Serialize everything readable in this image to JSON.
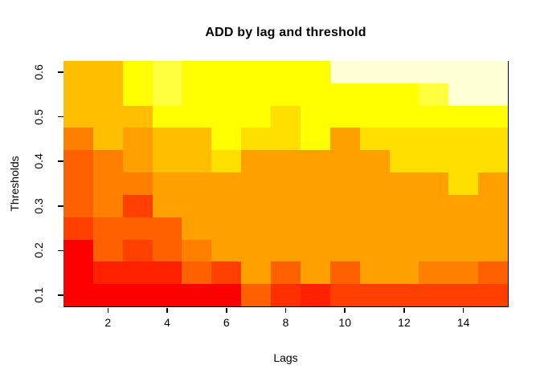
{
  "chart_data": {
    "type": "heatmap",
    "title": "ADD by lag and threshold",
    "xlabel": "Lags",
    "ylabel": "Thresholds",
    "x_ticks": [
      "2",
      "4",
      "6",
      "8",
      "10",
      "12",
      "14"
    ],
    "x_tick_lags": [
      2,
      4,
      6,
      8,
      10,
      12,
      14
    ],
    "y_ticks": [
      "0.1",
      "0.2",
      "0.3",
      "0.4",
      "0.5",
      "0.6"
    ],
    "y_tick_values": [
      0.1,
      0.2,
      0.3,
      0.4,
      0.5,
      0.6
    ],
    "lags": [
      1,
      2,
      3,
      4,
      5,
      6,
      7,
      8,
      9,
      10,
      11,
      12,
      13,
      14,
      15
    ],
    "thresholds_top_to_bottom": [
      0.6,
      0.55,
      0.5,
      0.45,
      0.4,
      0.35,
      0.3,
      0.25,
      0.2,
      0.15,
      0.1
    ],
    "x_range": [
      0.5,
      15.5
    ],
    "y_range": [
      0.075,
      0.625
    ],
    "grid_on": false,
    "legend": "none",
    "palette_heat_low_to_high": [
      "#FF0000",
      "#FF2000",
      "#FF3000",
      "#FF4000",
      "#FF6000",
      "#FF8000",
      "#FF9F00",
      "#FFBF00",
      "#FFDF00",
      "#FFFF00",
      "#FFFF40",
      "#FFFFD5"
    ],
    "grid_colors_top_to_bottom": [
      [
        "#FFBF00",
        "#FFBF00",
        "#FFFF00",
        "#FFFF40",
        "#FFFF00",
        "#FFFF00",
        "#FFFF00",
        "#FFFF00",
        "#FFFF00",
        "#FFFFD5",
        "#FFFFD5",
        "#FFFFD5",
        "#FFFFD5",
        "#FFFFD5",
        "#FFFFD5"
      ],
      [
        "#FFBF00",
        "#FFBF00",
        "#FFFF00",
        "#FFFF40",
        "#FFFF00",
        "#FFFF00",
        "#FFFF00",
        "#FFFF00",
        "#FFFF00",
        "#FFFF00",
        "#FFFF00",
        "#FFFF00",
        "#FFFF40",
        "#FFFFD5",
        "#FFFFD5"
      ],
      [
        "#FFBF00",
        "#FFBF00",
        "#FFBF00",
        "#FFFF00",
        "#FFFF00",
        "#FFFF00",
        "#FFFF00",
        "#FFDF00",
        "#FFFF00",
        "#FFFF00",
        "#FFFF00",
        "#FFFF00",
        "#FFFF00",
        "#FFFF00",
        "#FFFF00"
      ],
      [
        "#FF8000",
        "#FFBF00",
        "#FF9F00",
        "#FFBF00",
        "#FFBF00",
        "#FFFF00",
        "#FFDF00",
        "#FFDF00",
        "#FFFF00",
        "#FF9F00",
        "#FFDF00",
        "#FFDF00",
        "#FFDF00",
        "#FFDF00",
        "#FFDF00"
      ],
      [
        "#FF6000",
        "#FF8000",
        "#FF9F00",
        "#FFBF00",
        "#FFBF00",
        "#FFDF00",
        "#FF9F00",
        "#FF9F00",
        "#FF9F00",
        "#FF9F00",
        "#FF9F00",
        "#FFDF00",
        "#FFDF00",
        "#FFDF00",
        "#FFDF00"
      ],
      [
        "#FF6000",
        "#FF8000",
        "#FF8000",
        "#FF9F00",
        "#FF9F00",
        "#FF9F00",
        "#FF9F00",
        "#FF9F00",
        "#FF9F00",
        "#FF9F00",
        "#FF9F00",
        "#FF9F00",
        "#FF9F00",
        "#FFDF00",
        "#FF9F00"
      ],
      [
        "#FF6000",
        "#FF8000",
        "#FF4000",
        "#FF9F00",
        "#FF9F00",
        "#FF9F00",
        "#FF9F00",
        "#FF9F00",
        "#FF9F00",
        "#FF9F00",
        "#FF9F00",
        "#FF9F00",
        "#FF9F00",
        "#FF9F00",
        "#FF9F00"
      ],
      [
        "#FF4000",
        "#FF6000",
        "#FF6000",
        "#FF6000",
        "#FF9F00",
        "#FF9F00",
        "#FF9F00",
        "#FF9F00",
        "#FF9F00",
        "#FF9F00",
        "#FF9F00",
        "#FF9F00",
        "#FF9F00",
        "#FF9F00",
        "#FF9F00"
      ],
      [
        "#FF0000",
        "#FF6000",
        "#FF4000",
        "#FF6000",
        "#FF8000",
        "#FF9F00",
        "#FF9F00",
        "#FF9F00",
        "#FF9F00",
        "#FF9F00",
        "#FF9F00",
        "#FF9F00",
        "#FF9F00",
        "#FF9F00",
        "#FF9F00"
      ],
      [
        "#FF0000",
        "#FF2000",
        "#FF2000",
        "#FF2000",
        "#FF6000",
        "#FF4000",
        "#FF9F00",
        "#FF6000",
        "#FF9F00",
        "#FF6000",
        "#FF9F00",
        "#FF9F00",
        "#FF8000",
        "#FF8000",
        "#FF6000"
      ],
      [
        "#FF0000",
        "#FF0000",
        "#FF0000",
        "#FF0000",
        "#FF0000",
        "#FF0000",
        "#FF6000",
        "#FF3000",
        "#FF2000",
        "#FF4000",
        "#FF4000",
        "#FF4000",
        "#FF4000",
        "#FF4000",
        "#FF4000"
      ]
    ]
  }
}
